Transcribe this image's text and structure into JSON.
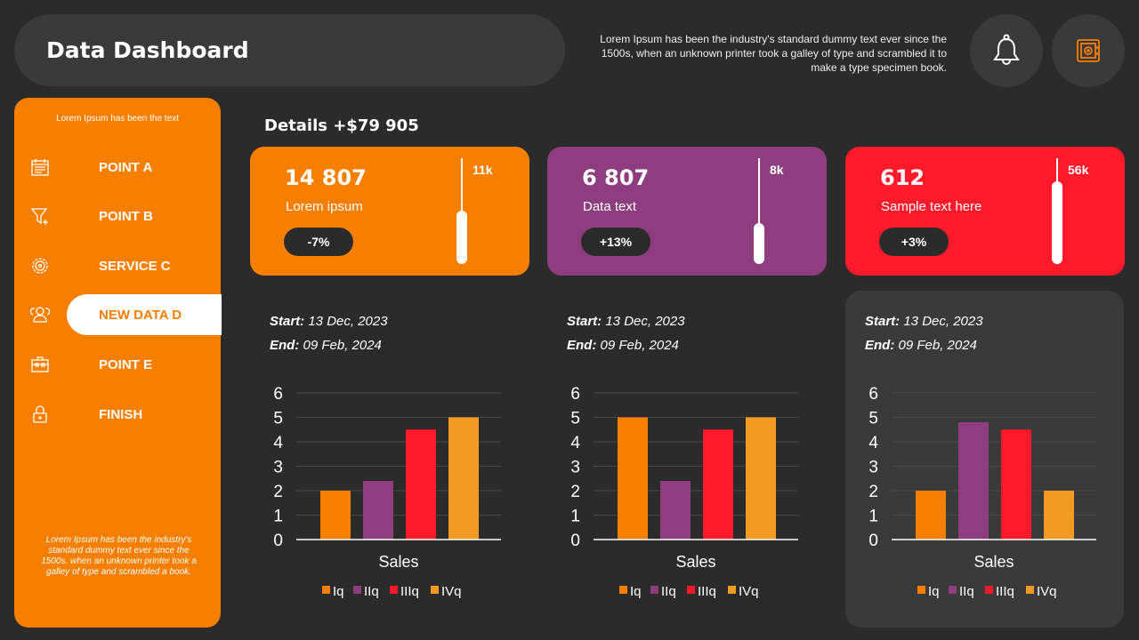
{
  "header": {
    "title": "Data Dashboard",
    "description": "Lorem Ipsum has been the industry's standard dummy text ever since the 1500s, when an unknown printer took a galley of type and scrambled it to make a type specimen book.",
    "icons": [
      "bell-icon",
      "safe-icon"
    ]
  },
  "sidebar": {
    "top_text": "Lorem Ipsum has been the text",
    "items": [
      {
        "label": "POINT A",
        "icon": "calendar-icon"
      },
      {
        "label": "POINT B",
        "icon": "funnel-plus-icon"
      },
      {
        "label": "SERVICE C",
        "icon": "gear-icon"
      },
      {
        "label": "NEW DATA D",
        "icon": "users-icon",
        "active": true
      },
      {
        "label": "POINT E",
        "icon": "toolbox-icon"
      },
      {
        "label": "FINISH",
        "icon": "lock-icon"
      }
    ],
    "bottom_text": "Lorem Ipsum has been the industry's standard dummy text ever since the 1500s, when an unknown printer took a galley of type and scrambled a book."
  },
  "details": "Details +$79 905",
  "cards": [
    {
      "value": "14 807",
      "label": "Lorem ipsum",
      "badge": "-7%",
      "max": "11k",
      "level": 0.5,
      "color": "#f77f00"
    },
    {
      "value": "6 807",
      "label": "Data text",
      "badge": "+13%",
      "max": "8k",
      "level": 0.39,
      "color": "#8e3e7f"
    },
    {
      "value": "612",
      "label": "Sample text here",
      "badge": "+3%",
      "max": "56k",
      "level": 0.78,
      "color": "#fe1a2a"
    }
  ],
  "dates": [
    {
      "start_label": "Start:",
      "start": "13 Dec, 2023",
      "end_label": "End:",
      "end": "09 Feb, 2024"
    },
    {
      "start_label": "Start:",
      "start": "13 Dec, 2023",
      "end_label": "End:",
      "end": "09 Feb, 2024"
    },
    {
      "start_label": "Start:",
      "start": "13 Dec, 2023",
      "end_label": "End:",
      "end": "09 Feb, 2024"
    }
  ],
  "chart_data": [
    {
      "type": "bar",
      "categories": [
        "Sales"
      ],
      "xlabel": "Sales",
      "ylim": [
        0,
        6
      ],
      "yticks": [
        "0",
        "1",
        "2",
        "3",
        "4",
        "5",
        "6"
      ],
      "grid": true,
      "legend": "bottom",
      "series": [
        {
          "name": "Iq",
          "values": [
            2
          ],
          "color": "#f77f00"
        },
        {
          "name": "IIq",
          "values": [
            2.4
          ],
          "color": "#8e3e7f"
        },
        {
          "name": "IIIq",
          "values": [
            4.5
          ],
          "color": "#fe1a2a"
        },
        {
          "name": "IVq",
          "values": [
            5
          ],
          "color": "#f29a21"
        }
      ]
    },
    {
      "type": "bar",
      "categories": [
        "Sales"
      ],
      "xlabel": "Sales",
      "ylim": [
        0,
        6
      ],
      "yticks": [
        "0",
        "1",
        "2",
        "3",
        "4",
        "5",
        "6"
      ],
      "grid": true,
      "legend": "bottom",
      "series": [
        {
          "name": "Iq",
          "values": [
            5
          ],
          "color": "#f77f00"
        },
        {
          "name": "IIq",
          "values": [
            2.4
          ],
          "color": "#8e3e7f"
        },
        {
          "name": "IIIq",
          "values": [
            4.5
          ],
          "color": "#fe1a2a"
        },
        {
          "name": "IVq",
          "values": [
            5
          ],
          "color": "#f29a21"
        }
      ]
    },
    {
      "type": "bar",
      "categories": [
        "Sales"
      ],
      "xlabel": "Sales",
      "ylim": [
        0,
        6
      ],
      "yticks": [
        "0",
        "1",
        "2",
        "3",
        "4",
        "5",
        "6"
      ],
      "grid": true,
      "legend": "bottom",
      "series": [
        {
          "name": "Iq",
          "values": [
            2
          ],
          "color": "#f77f00"
        },
        {
          "name": "IIq",
          "values": [
            4.8
          ],
          "color": "#8e3e7f"
        },
        {
          "name": "IIIq",
          "values": [
            4.5
          ],
          "color": "#fe1a2a"
        },
        {
          "name": "IVq",
          "values": [
            2
          ],
          "color": "#f29a21"
        }
      ]
    }
  ]
}
